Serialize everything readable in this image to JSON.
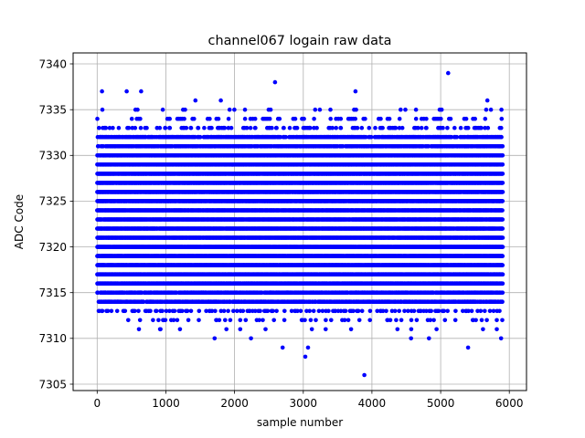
{
  "chart_data": {
    "type": "scatter",
    "title": "channel067 logain raw data",
    "xlabel": "sample number",
    "ylabel": "ADC Code",
    "xlim": [
      -350,
      6250
    ],
    "ylim": [
      7304.3,
      7341.2
    ],
    "x_ticks": [
      0,
      1000,
      2000,
      3000,
      4000,
      5000,
      6000
    ],
    "y_ticks": [
      7305,
      7310,
      7315,
      7320,
      7325,
      7330,
      7335,
      7340
    ],
    "grid": true,
    "marker_color": "#0000ff",
    "series": [
      {
        "x_range": [
          0,
          5900
        ],
        "y_min": 7306,
        "y_max": 7339,
        "dense_band": [
          7314,
          7332
        ],
        "outliers": [
          {
            "x": 70,
            "y": 7337
          },
          {
            "x": 430,
            "y": 7337
          },
          {
            "x": 640,
            "y": 7337
          },
          {
            "x": 1430,
            "y": 7336
          },
          {
            "x": 1800,
            "y": 7336
          },
          {
            "x": 2590,
            "y": 7338
          },
          {
            "x": 3760,
            "y": 7337
          },
          {
            "x": 5110,
            "y": 7339
          },
          {
            "x": 5680,
            "y": 7336
          },
          {
            "x": 1710,
            "y": 7310
          },
          {
            "x": 2240,
            "y": 7310
          },
          {
            "x": 2700,
            "y": 7309
          },
          {
            "x": 3030,
            "y": 7308
          },
          {
            "x": 3070,
            "y": 7309
          },
          {
            "x": 3890,
            "y": 7306
          },
          {
            "x": 4570,
            "y": 7310
          },
          {
            "x": 4830,
            "y": 7310
          },
          {
            "x": 5400,
            "y": 7309
          },
          {
            "x": 5880,
            "y": 7310
          }
        ]
      }
    ]
  }
}
